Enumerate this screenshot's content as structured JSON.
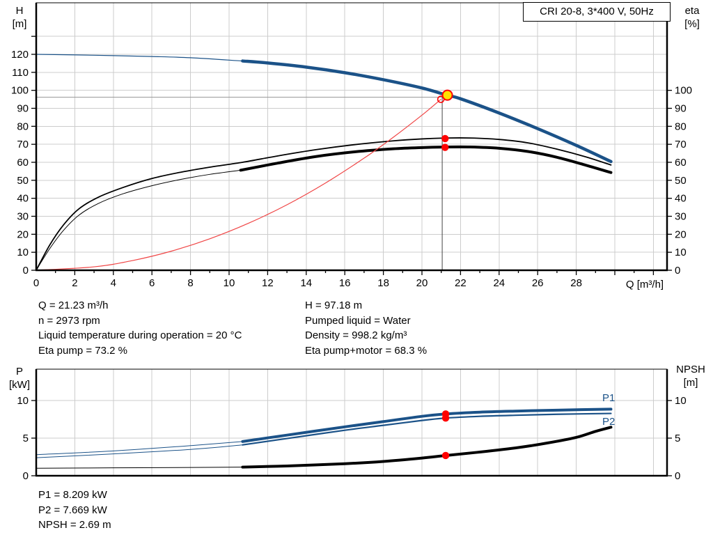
{
  "title_box": "CRI 20-8, 3*400 V, 50Hz",
  "colors": {
    "curve_blue": "#1b5288",
    "marker_red": "#ff0000",
    "system_red": "#f04545",
    "curve_black": "#000000",
    "grid": "#cccccc",
    "axis": "#000000",
    "duty_yellow": "#ffe100",
    "crosshair_h": "#999999",
    "crosshair_v": "#444444"
  },
  "axis_labels": {
    "head_1": "H",
    "head_2": "[m]",
    "eta_1": "eta",
    "eta_2": "[%]",
    "flow": "Q [m³/h]",
    "power_1": "P",
    "power_2": "[kW]",
    "npsh_1": "NPSH",
    "npsh_2": "[m]"
  },
  "series_labels": {
    "p1": "P1",
    "p2": "P2"
  },
  "readouts": {
    "q": "Q = 21.23 m³/h",
    "n": "n = 2973 rpm",
    "temp": "Liquid temperature during operation = 20 °C",
    "eta_pump": "Eta pump = 73.2 %",
    "h": "H = 97.18 m",
    "liquid": "Pumped liquid = Water",
    "density": "Density = 998.2 kg/m³",
    "eta_total": "Eta pump+motor = 68.3 %",
    "p1": "P1 = 8.209 kW",
    "p2": "P2 = 7.669 kW",
    "npsh": "NPSH = 2.69 m"
  },
  "chart_data": [
    {
      "type": "line",
      "title": "CRI 20-8, 3*400 V, 50Hz",
      "xlabel": "Q [m³/h]",
      "ylabel_left": "H [m]",
      "ylabel_right": "eta [%]",
      "xlim": [
        0,
        32.7
      ],
      "ylim_left": [
        0,
        148.6
      ],
      "ylim_right": [
        0,
        148.6
      ],
      "grid": true,
      "x_label_ticks": [
        0,
        2,
        4,
        6,
        8,
        10,
        12,
        14,
        16,
        18,
        20,
        22,
        24,
        26,
        28
      ],
      "x_minor_step": 1,
      "left_ticks": [
        0,
        10,
        20,
        30,
        40,
        50,
        60,
        70,
        80,
        90,
        100,
        110,
        120,
        130
      ],
      "left_label_max": 120,
      "right_ticks": [
        0,
        10,
        20,
        30,
        40,
        50,
        60,
        70,
        80,
        90,
        100
      ],
      "duty": {
        "q": 21.23,
        "h": 97.18,
        "eta_pump_pct": 73.2,
        "eta_total_pct": 68.3,
        "n_rpm": 2973
      },
      "series": [
        {
          "name": "head-curve-thin",
          "color": "curve_blue",
          "width": 1.2,
          "points": [
            [
              0,
              120
            ],
            [
              3,
              119.5
            ],
            [
              6,
              118.8
            ],
            [
              8,
              118.1
            ],
            [
              10.7,
              116.3
            ]
          ]
        },
        {
          "name": "head-curve",
          "color": "curve_blue",
          "width": 4.5,
          "points": [
            [
              10.7,
              116.3
            ],
            [
              12,
              115.2
            ],
            [
              14,
              112.9
            ],
            [
              16,
              109.8
            ],
            [
              18,
              105.9
            ],
            [
              20,
              101.3
            ],
            [
              21.3,
              97.3
            ],
            [
              22,
              95.3
            ],
            [
              24,
              87.4
            ],
            [
              26,
              78.7
            ],
            [
              28,
              69.4
            ],
            [
              29.8,
              60.4
            ]
          ]
        },
        {
          "name": "eta-pump-curve",
          "color": "curve_black",
          "width": 1.8,
          "points": [
            [
              0,
              0
            ],
            [
              0.7,
              14
            ],
            [
              1.4,
              25
            ],
            [
              2.2,
              34
            ],
            [
              3.2,
              40.5
            ],
            [
              4.5,
              46
            ],
            [
              6,
              51
            ],
            [
              7.5,
              54.5
            ],
            [
              9,
              57.3
            ],
            [
              10.7,
              60
            ],
            [
              12.5,
              63.5
            ],
            [
              14.5,
              67
            ],
            [
              16.5,
              69.8
            ],
            [
              18.5,
              71.9
            ],
            [
              20,
              73
            ],
            [
              21.3,
              73.5
            ],
            [
              22.5,
              73.5
            ],
            [
              24,
              72.7
            ],
            [
              25.5,
              70.8
            ],
            [
              27,
              67.3
            ],
            [
              28.5,
              63
            ],
            [
              29.8,
              58.5
            ]
          ]
        },
        {
          "name": "eta-pump-motor-thin",
          "color": "curve_black",
          "width": 1,
          "points": [
            [
              0,
              0
            ],
            [
              0.7,
              12
            ],
            [
              1.4,
              22
            ],
            [
              2.2,
              30.5
            ],
            [
              3.2,
              37
            ],
            [
              4.5,
              42.5
            ],
            [
              6,
              47
            ],
            [
              7.5,
              50.5
            ],
            [
              9,
              53.3
            ],
            [
              10.6,
              55.6
            ]
          ]
        },
        {
          "name": "eta-pump-motor-curve",
          "color": "curve_black",
          "width": 4,
          "points": [
            [
              10.6,
              55.6
            ],
            [
              12.5,
              59.5
            ],
            [
              14.5,
              63.2
            ],
            [
              16.5,
              65.8
            ],
            [
              18.5,
              67.5
            ],
            [
              20,
              68.2
            ],
            [
              21.3,
              68.5
            ],
            [
              22.5,
              68.5
            ],
            [
              24,
              67.8
            ],
            [
              25.5,
              66
            ],
            [
              27,
              62.8
            ],
            [
              28.5,
              58.4
            ],
            [
              29.8,
              54.3
            ]
          ]
        },
        {
          "name": "system-curve",
          "color": "system_red",
          "width": 1.2,
          "points": [
            [
              0,
              0
            ],
            [
              3,
              1.9
            ],
            [
              5,
              5.4
            ],
            [
              7,
              10.6
            ],
            [
              9,
              17.5
            ],
            [
              11,
              26.1
            ],
            [
              13,
              36.4
            ],
            [
              15,
              48.5
            ],
            [
              17,
              62.3
            ],
            [
              18.5,
              73.8
            ],
            [
              20,
              86.2
            ],
            [
              20.98,
              95
            ]
          ]
        }
      ],
      "crosshair": {
        "x": 21.05,
        "y": 96.2
      },
      "markers": [
        {
          "type": "ring",
          "x": 20.98,
          "y": 95
        },
        {
          "type": "duty",
          "x": 21.32,
          "y": 97.3
        },
        {
          "type": "dot",
          "x": 21.2,
          "y": 73.2
        },
        {
          "type": "dot",
          "x": 21.2,
          "y": 68.3
        }
      ]
    },
    {
      "type": "line",
      "xlabel": "Q [m³/h]",
      "ylabel_left": "P [kW]",
      "ylabel_right": "NPSH [m]",
      "xlim": [
        0,
        32.7
      ],
      "ylim_left": [
        0,
        14.2
      ],
      "ylim_right": [
        0,
        14.2
      ],
      "grid": true,
      "left_ticks": [
        0,
        5,
        10
      ],
      "left_label_max": 10,
      "right_ticks": [
        0,
        5,
        10
      ],
      "duty": {
        "q": 21.23,
        "p1_kw": 8.209,
        "p2_kw": 7.669,
        "npsh_m": 2.69
      },
      "series": [
        {
          "name": "p1-curve-thin",
          "color": "curve_blue",
          "width": 1,
          "points": [
            [
              0,
              2.8
            ],
            [
              4,
              3.3
            ],
            [
              8,
              4.0
            ],
            [
              10.7,
              4.55
            ]
          ]
        },
        {
          "name": "p1-curve",
          "color": "curve_blue",
          "width": 4,
          "points": [
            [
              10.7,
              4.55
            ],
            [
              13,
              5.4
            ],
            [
              16,
              6.5
            ],
            [
              18,
              7.2
            ],
            [
              20,
              7.9
            ],
            [
              21.23,
              8.209
            ],
            [
              23,
              8.45
            ],
            [
              25,
              8.6
            ],
            [
              27,
              8.72
            ],
            [
              29.8,
              8.85
            ]
          ]
        },
        {
          "name": "p2-curve-thin",
          "color": "curve_blue",
          "width": 1,
          "points": [
            [
              0,
              2.4
            ],
            [
              4,
              2.9
            ],
            [
              8,
              3.5
            ],
            [
              10.7,
              4.1
            ]
          ]
        },
        {
          "name": "p2-curve",
          "color": "curve_blue",
          "width": 2.2,
          "points": [
            [
              10.7,
              4.1
            ],
            [
              13,
              4.95
            ],
            [
              16,
              6.05
            ],
            [
              18,
              6.7
            ],
            [
              20,
              7.35
            ],
            [
              21.23,
              7.669
            ],
            [
              23,
              7.9
            ],
            [
              25,
              8.05
            ],
            [
              27,
              8.17
            ],
            [
              29.8,
              8.28
            ]
          ]
        },
        {
          "name": "npsh-curve-thin",
          "color": "curve_black",
          "width": 1,
          "points": [
            [
              0,
              1.0
            ],
            [
              4,
              1.05
            ],
            [
              8,
              1.1
            ],
            [
              10.7,
              1.15
            ]
          ]
        },
        {
          "name": "npsh-curve",
          "color": "curve_black",
          "width": 4,
          "points": [
            [
              10.7,
              1.15
            ],
            [
              13,
              1.3
            ],
            [
              16,
              1.6
            ],
            [
              18,
              1.9
            ],
            [
              20,
              2.35
            ],
            [
              21.23,
              2.69
            ],
            [
              23,
              3.15
            ],
            [
              25,
              3.75
            ],
            [
              26.5,
              4.35
            ],
            [
              28,
              5.1
            ],
            [
              29,
              5.9
            ],
            [
              29.8,
              6.45
            ]
          ]
        }
      ],
      "markers": [
        {
          "type": "dot",
          "x": 21.23,
          "y": 8.209
        },
        {
          "type": "dot",
          "x": 21.23,
          "y": 7.669
        },
        {
          "type": "dot",
          "x": 21.23,
          "y": 2.69
        }
      ]
    }
  ]
}
